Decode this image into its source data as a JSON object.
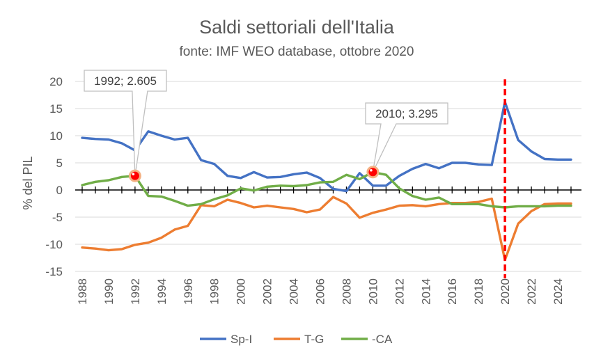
{
  "chart_data": {
    "type": "line",
    "title": "Saldi settoriali dell'Italia",
    "subtitle": "fonte: IMF WEO database, ottobre 2020",
    "ylabel": "% del PIL",
    "xlabel": "",
    "ylim": [
      -15,
      20
    ],
    "yticks": [
      20,
      15,
      10,
      5,
      0,
      -5,
      -10,
      -15
    ],
    "x": [
      1988,
      1989,
      1990,
      1991,
      1992,
      1993,
      1994,
      1995,
      1996,
      1997,
      1998,
      1999,
      2000,
      2001,
      2002,
      2003,
      2004,
      2005,
      2006,
      2007,
      2008,
      2009,
      2010,
      2011,
      2012,
      2013,
      2014,
      2015,
      2016,
      2017,
      2018,
      2019,
      2020,
      2021,
      2022,
      2023,
      2024,
      2025
    ],
    "xtick_labels": [
      "1988",
      "1990",
      "1992",
      "1994",
      "1996",
      "1998",
      "2000",
      "2002",
      "2004",
      "2006",
      "2008",
      "2010",
      "2012",
      "2014",
      "2016",
      "2018",
      "2020",
      "2022",
      "2024"
    ],
    "series": [
      {
        "name": "Sp-I",
        "color": "#4472C4",
        "values": [
          9.6,
          9.4,
          9.3,
          8.6,
          7.3,
          10.8,
          10.0,
          9.3,
          9.6,
          5.5,
          4.8,
          2.6,
          2.2,
          3.3,
          2.3,
          2.4,
          2.9,
          3.2,
          2.2,
          0.2,
          -0.2,
          3.1,
          0.8,
          0.8,
          2.6,
          3.9,
          4.8,
          4.0,
          5.0,
          5.0,
          4.7,
          4.6,
          16.2,
          9.2,
          7.1,
          5.7,
          5.6,
          5.6
        ]
      },
      {
        "name": "T-G",
        "color": "#ED7D31",
        "values": [
          -10.6,
          -10.8,
          -11.1,
          -10.9,
          -10.1,
          -9.7,
          -8.8,
          -7.3,
          -6.6,
          -2.8,
          -3.0,
          -1.8,
          -2.4,
          -3.2,
          -2.9,
          -3.2,
          -3.5,
          -4.1,
          -3.6,
          -1.3,
          -2.5,
          -5.1,
          -4.2,
          -3.6,
          -2.9,
          -2.8,
          -3.0,
          -2.6,
          -2.4,
          -2.4,
          -2.2,
          -1.6,
          -12.9,
          -6.2,
          -3.9,
          -2.6,
          -2.5,
          -2.5
        ]
      },
      {
        "name": "-CA",
        "color": "#70AD47",
        "values": [
          0.9,
          1.5,
          1.8,
          2.4,
          2.6,
          -1.1,
          -1.2,
          -2.0,
          -2.9,
          -2.6,
          -1.7,
          -1.0,
          0.3,
          -0.1,
          0.6,
          0.8,
          0.7,
          0.9,
          1.4,
          1.5,
          2.8,
          2.0,
          3.3,
          2.8,
          0.3,
          -1.1,
          -1.8,
          -1.4,
          -2.6,
          -2.6,
          -2.6,
          -3.0,
          -3.2,
          -3.0,
          -3.0,
          -3.0,
          -2.9,
          -2.9
        ]
      }
    ],
    "annotations": [
      {
        "label": "1992; 2.605",
        "x": 1992,
        "y": 2.605
      },
      {
        "label": "2010; 3.295",
        "x": 2010,
        "y": 3.295
      }
    ],
    "reference_line": {
      "x": 2020,
      "color": "#FF0000",
      "style": "dashed"
    },
    "marker_color": "#FF0000",
    "legend": "bottom"
  }
}
